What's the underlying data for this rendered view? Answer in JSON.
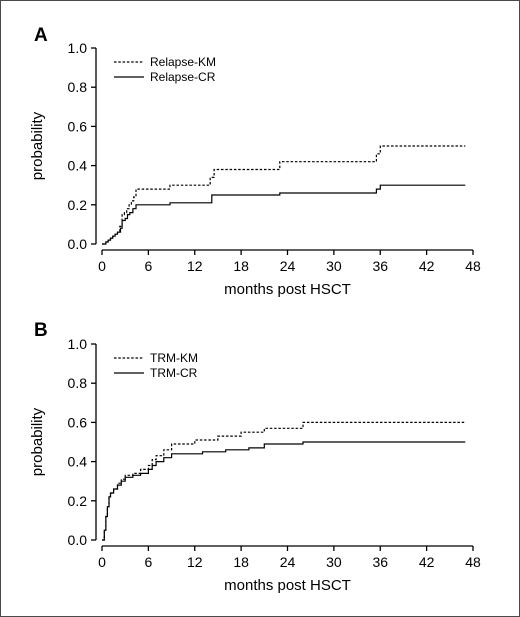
{
  "chart_data": [
    {
      "type": "line",
      "step": true,
      "panel_label": "A",
      "xlabel": "months post HSCT",
      "ylabel": "probability",
      "xlim": [
        0,
        48
      ],
      "ylim": [
        0,
        1.0
      ],
      "xticks": [
        "0",
        "6",
        "12",
        "18",
        "24",
        "30",
        "36",
        "42",
        "48"
      ],
      "yticks": [
        "0.0",
        "0.2",
        "0.4",
        "0.6",
        "0.8",
        "1.0"
      ],
      "legend_position": "top-left",
      "series": [
        {
          "name": "Relapse-KM",
          "style": "dotted",
          "x": [
            0,
            0.5,
            0.8,
            1.1,
            1.4,
            1.7,
            2.0,
            2.3,
            2.6,
            2.9,
            3.2,
            3.5,
            3.8,
            4.1,
            4.4,
            8.8,
            14.0,
            14.5,
            23.0,
            35.5,
            36.0,
            47.0
          ],
          "y": [
            0.0,
            0.01,
            0.02,
            0.03,
            0.04,
            0.05,
            0.06,
            0.09,
            0.15,
            0.16,
            0.18,
            0.2,
            0.22,
            0.24,
            0.28,
            0.3,
            0.34,
            0.38,
            0.42,
            0.46,
            0.5,
            0.5
          ]
        },
        {
          "name": "Relapse-CR",
          "style": "solid",
          "x": [
            0,
            0.5,
            0.8,
            1.1,
            1.4,
            1.7,
            2.0,
            2.4,
            2.6,
            3.0,
            3.3,
            3.6,
            4.0,
            4.4,
            8.8,
            14.2,
            23.0,
            35.5,
            36.0,
            47.0
          ],
          "y": [
            0.0,
            0.01,
            0.02,
            0.03,
            0.04,
            0.05,
            0.06,
            0.08,
            0.12,
            0.13,
            0.15,
            0.16,
            0.18,
            0.2,
            0.21,
            0.25,
            0.26,
            0.28,
            0.3,
            0.3
          ]
        }
      ]
    },
    {
      "type": "line",
      "step": true,
      "panel_label": "B",
      "xlabel": "months post HSCT",
      "ylabel": "probability",
      "xlim": [
        0,
        48
      ],
      "ylim": [
        0,
        1.0
      ],
      "xticks": [
        "0",
        "6",
        "12",
        "18",
        "24",
        "30",
        "36",
        "42",
        "48"
      ],
      "yticks": [
        "0.0",
        "0.2",
        "0.4",
        "0.6",
        "0.8",
        "1.0"
      ],
      "legend_position": "top-left",
      "series": [
        {
          "name": "TRM-KM",
          "style": "dotted",
          "x": [
            0,
            0.3,
            0.5,
            0.7,
            0.9,
            1.1,
            1.5,
            2.0,
            2.5,
            3.0,
            4.0,
            5.0,
            6.0,
            6.5,
            7.0,
            8.0,
            9.0,
            12.0,
            15.0,
            18.0,
            21.0,
            26.0,
            47.0
          ],
          "y": [
            0.0,
            0.05,
            0.12,
            0.17,
            0.22,
            0.24,
            0.26,
            0.29,
            0.31,
            0.33,
            0.34,
            0.36,
            0.38,
            0.41,
            0.43,
            0.46,
            0.49,
            0.51,
            0.53,
            0.55,
            0.57,
            0.6,
            0.6
          ]
        },
        {
          "name": "TRM-CR",
          "style": "solid",
          "x": [
            0,
            0.3,
            0.5,
            0.7,
            0.9,
            1.1,
            1.5,
            2.0,
            2.5,
            3.0,
            4.0,
            5.0,
            6.0,
            6.5,
            7.0,
            8.0,
            9.0,
            13.0,
            16.0,
            19.0,
            21.0,
            26.0,
            47.0
          ],
          "y": [
            0.0,
            0.05,
            0.12,
            0.17,
            0.22,
            0.24,
            0.26,
            0.28,
            0.3,
            0.32,
            0.33,
            0.34,
            0.36,
            0.38,
            0.4,
            0.42,
            0.44,
            0.45,
            0.46,
            0.47,
            0.49,
            0.5,
            0.5
          ]
        }
      ]
    }
  ]
}
